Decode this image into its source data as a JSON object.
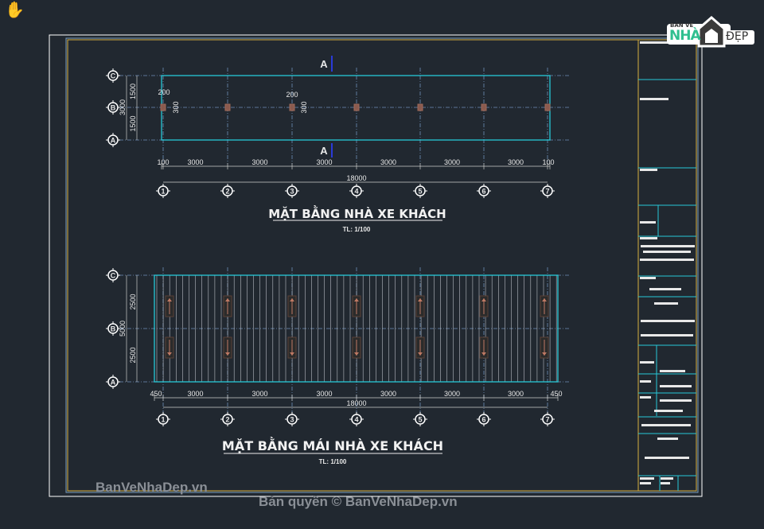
{
  "colors": {
    "background": "#212830",
    "grid": "#6d8fb8",
    "outline": "#27c8d8",
    "column": "#8a5a4e",
    "frame_yellow": "#d8b040",
    "arrow": "#c07a64"
  },
  "cursor": {
    "icon": "hand-pan-icon"
  },
  "logo": {
    "line1": "BẢN VẼ",
    "line2": "NHÀ",
    "line3": "ĐẸP"
  },
  "plan1": {
    "title": "MẶT BẰNG NHÀ XE KHÁCH",
    "scale": "TL: 1/100",
    "col_axes": [
      "1",
      "2",
      "3",
      "4",
      "5",
      "6",
      "7"
    ],
    "row_axes": [
      "C",
      "B",
      "A"
    ],
    "section_mark": "A",
    "dims_bottom": [
      "100",
      "3000",
      "3000",
      "3000",
      "3000",
      "3000",
      "3000",
      "100"
    ],
    "dim_total": "18000",
    "dims_left": [
      "1500",
      "1500"
    ],
    "dim_left_total": "3000",
    "column_notes": [
      "200",
      "300",
      "200",
      "300"
    ]
  },
  "plan2": {
    "title": "MẶT BẰNG MÁI NHÀ XE KHÁCH",
    "scale": "TL: 1/100",
    "col_axes": [
      "1",
      "2",
      "3",
      "4",
      "5",
      "6",
      "7"
    ],
    "row_axes": [
      "C",
      "B",
      "A"
    ],
    "dims_bottom": [
      "450",
      "3000",
      "3000",
      "3000",
      "3000",
      "3000",
      "3000",
      "450"
    ],
    "dim_total": "18000",
    "dims_left": [
      "2500",
      "2500"
    ],
    "dim_left_total": "5000"
  },
  "watermarks": {
    "left": "BanVeNhaDep.vn",
    "bottom": "Bản quyền © BanVeNhaDep.vn"
  }
}
